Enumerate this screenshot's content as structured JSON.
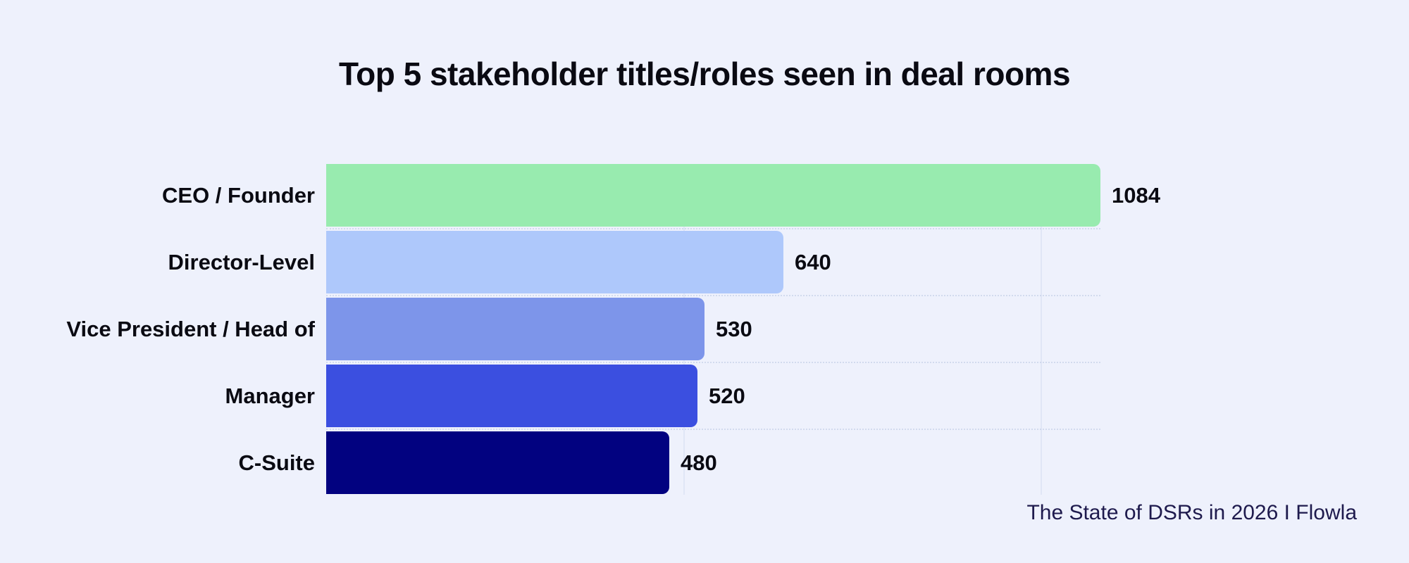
{
  "title": "Top 5 stakeholder titles/roles seen in deal rooms",
  "footer": {
    "source_label": "The State of DSRs in 2026 I Flowla"
  },
  "colors": {
    "background": "#eef1fc",
    "text": "#0a0a12",
    "footer_text": "#1e1a4d",
    "gridline": "#e0e6f6"
  },
  "chart_data": {
    "type": "bar",
    "orientation": "horizontal",
    "title": "Top 5 stakeholder titles/roles seen in deal rooms",
    "categories": [
      "CEO / Founder",
      "Director-Level",
      "Vice President / Head of",
      "Manager",
      "C-Suite"
    ],
    "values": [
      1084,
      640,
      530,
      520,
      480
    ],
    "bar_colors": [
      "#98ebaf",
      "#aec8fb",
      "#7d95ea",
      "#3b4fe0",
      "#020280"
    ],
    "xlabel": "",
    "ylabel": "",
    "xlim": [
      0,
      1100
    ],
    "gridlines_x": [
      500,
      1000
    ],
    "legend_position": "none",
    "value_labels": "outside-end",
    "source": "The State of DSRs in 2026 I Flowla"
  }
}
